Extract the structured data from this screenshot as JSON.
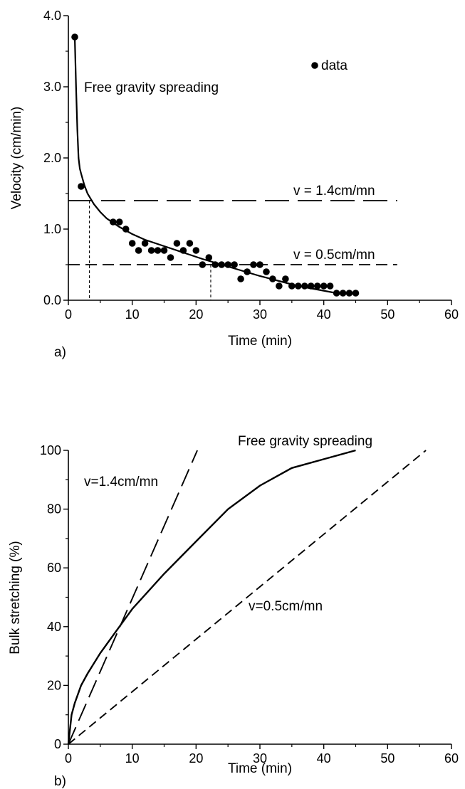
{
  "chart_data": [
    {
      "type": "scatter",
      "panel_label": "a)",
      "xlabel": "Time (min)",
      "ylabel": "Velocity (cm/min)",
      "xlim": [
        0,
        60
      ],
      "ylim": [
        0,
        4.0
      ],
      "xticks": [
        "0",
        "10",
        "20",
        "30",
        "40",
        "50",
        "60"
      ],
      "yticks": [
        "0.0",
        "1.0",
        "2.0",
        "3.0",
        "4.0"
      ],
      "legend": {
        "label": "data",
        "placement": "top-right"
      },
      "annotations": {
        "curve_label": "Free gravity spreading",
        "line1_label": "v = 1.4cm/mn",
        "line2_label": "v = 0.5cm/mn"
      },
      "series": [
        {
          "name": "data",
          "x": [
            1,
            2,
            7,
            8,
            9,
            10,
            11,
            12,
            13,
            14,
            15,
            16,
            17,
            18,
            19,
            20,
            21,
            22,
            23,
            24,
            25,
            26,
            27,
            28,
            29,
            30,
            31,
            32,
            33,
            34,
            35,
            36,
            37,
            38,
            39,
            40,
            41,
            42,
            43,
            44,
            45
          ],
          "y": [
            3.7,
            1.6,
            1.1,
            1.1,
            1.0,
            0.8,
            0.7,
            0.8,
            0.7,
            0.7,
            0.7,
            0.6,
            0.8,
            0.7,
            0.8,
            0.7,
            0.5,
            0.6,
            0.5,
            0.5,
            0.5,
            0.5,
            0.3,
            0.4,
            0.5,
            0.5,
            0.4,
            0.3,
            0.2,
            0.3,
            0.2,
            0.2,
            0.2,
            0.2,
            0.2,
            0.2,
            0.2,
            0.1,
            0.1,
            0.1,
            0.1
          ]
        },
        {
          "x": [
            1.0,
            1.2,
            1.4,
            1.6,
            1.8,
            2.0,
            2.5,
            3.0,
            4.0,
            5.0,
            6.0,
            8.0,
            10.0,
            12.0,
            15.0,
            18.0,
            21.0,
            24.0,
            27.0,
            30.0,
            33.0,
            36.0,
            39.0,
            42.0
          ],
          "y": [
            3.7,
            3.0,
            2.4,
            2.0,
            1.85,
            1.78,
            1.62,
            1.5,
            1.35,
            1.24,
            1.15,
            1.03,
            0.93,
            0.85,
            0.76,
            0.67,
            0.58,
            0.5,
            0.42,
            0.34,
            0.27,
            0.2,
            0.15,
            0.1
          ]
        }
      ],
      "reference_lines": [
        {
          "y": 1.4,
          "x_range": [
            0,
            51.5
          ],
          "drop_x": 3.3
        },
        {
          "y": 0.5,
          "x_range": [
            0,
            51.5
          ],
          "drop_x": 22.3
        }
      ]
    },
    {
      "type": "line",
      "panel_label": "b)",
      "xlabel": "Time (min)",
      "ylabel": "Bulk stretching (%)",
      "xlim": [
        0,
        60
      ],
      "ylim": [
        0,
        100
      ],
      "xticks": [
        "0",
        "10",
        "20",
        "30",
        "40",
        "50",
        "60"
      ],
      "yticks": [
        "0",
        "20",
        "40",
        "60",
        "80",
        "100"
      ],
      "annotations": {
        "curve_label": "Free gravity spreading",
        "line1_label": "v=1.4cm/mn",
        "line2_label": "v=0.5cm/mn"
      },
      "series": [
        {
          "x": [
            0,
            0.5,
            1,
            2,
            3,
            5,
            8,
            10,
            15,
            20,
            25,
            30,
            35,
            40,
            45
          ],
          "y": [
            0,
            10,
            14,
            20,
            24,
            31,
            40,
            46,
            58,
            69,
            80,
            88,
            94,
            97,
            100
          ]
        },
        {
          "x": [
            0,
            20.2
          ],
          "y": [
            0,
            100
          ]
        },
        {
          "x": [
            0,
            56
          ],
          "y": [
            0,
            100
          ]
        }
      ]
    }
  ]
}
